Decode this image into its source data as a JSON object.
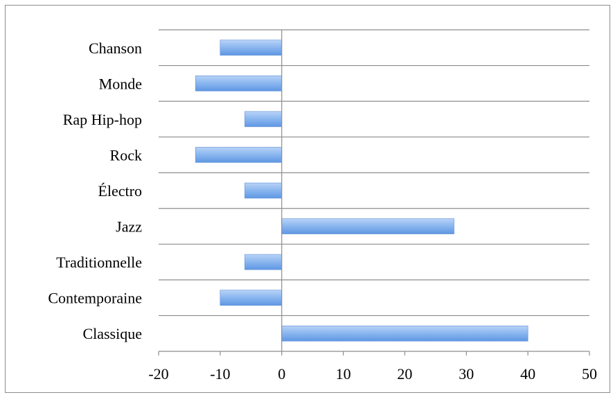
{
  "chart_data": {
    "type": "bar",
    "orientation": "horizontal",
    "categories": [
      "Chanson",
      "Monde",
      "Rap Hip-hop",
      "Rock",
      "Électro",
      "Jazz",
      "Traditionnelle",
      "Contemporaine",
      "Classique"
    ],
    "values": [
      -10,
      -14,
      -6,
      -14,
      -6,
      28,
      -6,
      -10,
      40
    ],
    "title": "",
    "xlabel": "",
    "ylabel": "",
    "xlim": [
      -20,
      50
    ],
    "xticks": [
      "-20",
      "-10",
      "0",
      "10",
      "20",
      "30",
      "40",
      "50"
    ],
    "grid": "horizontal",
    "legend": "none",
    "colors": {
      "bar_light": "#b9d3f7",
      "bar_mid": "#8db8f0",
      "bar_dark": "#5f97e3",
      "bar_edge": "#5a8fd6",
      "grid": "#8c8c8c",
      "axis": "#8c8c8c"
    }
  }
}
